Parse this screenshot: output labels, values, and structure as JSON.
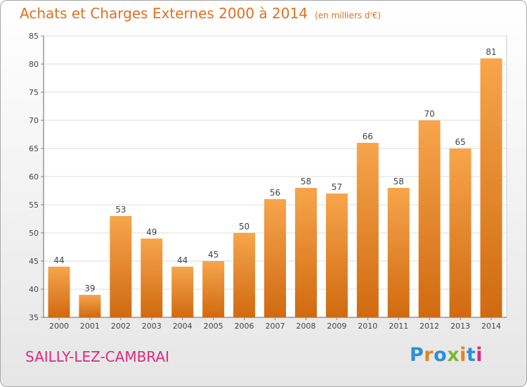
{
  "header": {
    "title": "Achats et Charges Externes 2000 à 2014",
    "subtitle": "(en milliers d'€)"
  },
  "footer": {
    "town": "SAILLY-LEZ-CAMBRAI",
    "logo": "Proxiti",
    "logo_colors": [
      "#2a8fd8",
      "#e8821e",
      "#2a8fd8",
      "#7cb82f",
      "#e8821e",
      "#2a8fd8",
      "#dd2a7b"
    ]
  },
  "colors": {
    "bar_light": "#f7a54c",
    "bar_dark": "#d06a10",
    "title": "#e07020",
    "town": "#dd2a7b"
  },
  "chart_data": {
    "type": "bar",
    "title": "Achats et Charges Externes 2000 à 2014",
    "subtitle": "(en milliers d'€)",
    "xlabel": "",
    "ylabel": "",
    "categories": [
      "2000",
      "2001",
      "2002",
      "2003",
      "2004",
      "2005",
      "2006",
      "2007",
      "2008",
      "2009",
      "2010",
      "2011",
      "2012",
      "2013",
      "2014"
    ],
    "values": [
      44,
      39,
      53,
      49,
      44,
      45,
      50,
      56,
      58,
      57,
      66,
      58,
      70,
      65,
      81
    ],
    "ylim": [
      35,
      85
    ],
    "yticks": [
      35,
      40,
      45,
      50,
      55,
      60,
      65,
      70,
      75,
      80,
      85
    ],
    "grid": true,
    "legend": "none"
  }
}
